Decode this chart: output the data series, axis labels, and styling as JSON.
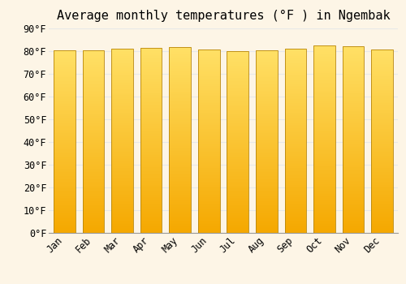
{
  "title": "Average monthly temperatures (°F ) in Ngembak",
  "months": [
    "Jan",
    "Feb",
    "Mar",
    "Apr",
    "May",
    "Jun",
    "Jul",
    "Aug",
    "Sep",
    "Oct",
    "Nov",
    "Dec"
  ],
  "values": [
    80.2,
    80.3,
    81.1,
    81.5,
    81.8,
    80.8,
    80.1,
    80.2,
    81.0,
    82.4,
    82.2,
    80.8
  ],
  "ylim": [
    0,
    90
  ],
  "ytick_step": 10,
  "bar_color_bottom": "#F5A800",
  "bar_color_top": "#FFE066",
  "bar_edge_color": "#B8860B",
  "bg_color": "#fdf5e6",
  "plot_bg_color": "#fdf5e6",
  "grid_color": "#e8e8e8",
  "title_fontsize": 11,
  "tick_fontsize": 8.5,
  "bar_width": 0.75
}
